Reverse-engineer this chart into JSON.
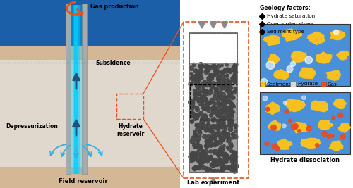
{
  "bg_color": "#ffffff",
  "panel_labels": {
    "field_reservoir": "Field reservoir",
    "lab_experiment": "Lab experiment",
    "hydrate_dissociation": "Hydrate dissociation"
  },
  "labels": {
    "gas_production": "Gas production",
    "subsidence": "Subsidence",
    "depressurization": "Depressurization",
    "hydrate_reservoir": "Hydrate\nreservoir"
  },
  "legend_title": "Geology factors:",
  "legend_items": [
    "Hydrate saturation",
    "Overburden stress",
    "Sediment type"
  ],
  "sediment_color": "#f5c020",
  "hydrate_color": "#c8e0f0",
  "gas_color": "#e84c1e",
  "water_dark": "#1a5fa8",
  "sand_color": "#d4b896",
  "sand_light": "#e8d8bc",
  "arrow_blue": "#00bfff",
  "dark_arrow": "#1a6695",
  "gray_pipe": "#aaaaaa",
  "orange_color": "#e8521a",
  "blue_panel": "#4a90d9",
  "dark_gray_grain": "#555555",
  "grain_bg": "#a0a0a0"
}
